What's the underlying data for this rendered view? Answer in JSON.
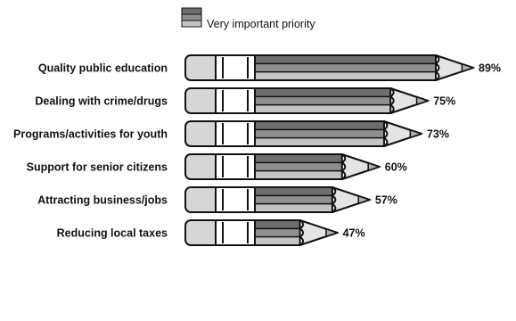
{
  "chart_data": {
    "type": "bar",
    "title": "",
    "xlabel": "",
    "ylabel": "",
    "xlim": [
      0,
      100
    ],
    "legend": {
      "label": "Very important priority",
      "placement": "top"
    },
    "categories": [
      "Quality public education",
      "Dealing with crime/drugs",
      "Programs/activities for youth",
      "Support for senior citizens",
      "Attracting business/jobs",
      "Reducing local taxes"
    ],
    "series": [
      {
        "name": "Very important priority",
        "values": [
          89,
          75,
          73,
          60,
          57,
          47
        ],
        "value_labels": [
          "89%",
          "75%",
          "73%",
          "60%",
          "57%",
          "47%"
        ]
      }
    ],
    "colors": {
      "pencil_top": "#6e6e6e",
      "pencil_mid": "#8f8f8f",
      "pencil_bottom": "#c4c4c4",
      "eraser": "#d6d6d6",
      "ferrule": "#ffffff",
      "wood": "#e4e4e4",
      "lead": "#b0b0b0",
      "outline": "#111111"
    }
  }
}
